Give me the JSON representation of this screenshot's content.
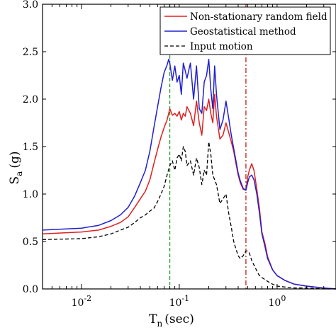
{
  "chart_data": {
    "type": "line",
    "xscale": "log",
    "xlim": [
      0.004,
      4.0
    ],
    "ylim": [
      0,
      3.0
    ],
    "xlabel_main": "T",
    "xlabel_sub": "n",
    "xlabel_unit": "(sec)",
    "ylabel_main": "S",
    "ylabel_sub": "a",
    "ylabel_unit": "(g)",
    "y_ticks": [
      "0.0",
      "0.5",
      "1.0",
      "1.5",
      "2.0",
      "2.5",
      "3.0"
    ],
    "y_tick_values": [
      0,
      0.5,
      1.0,
      1.5,
      2.0,
      2.5,
      3.0
    ],
    "x_major_ticks": [
      {
        "value": 0.01,
        "base": "10",
        "exp": "-2"
      },
      {
        "value": 0.1,
        "base": "10",
        "exp": "-1"
      },
      {
        "value": 1.0,
        "base": "10",
        "exp": "0"
      }
    ],
    "grid": false,
    "legend_position": "top-right",
    "series": [
      {
        "name": "Non-stationary random field",
        "color": "#e02020",
        "style": "solid",
        "x": [
          0.004,
          0.01,
          0.015,
          0.02,
          0.025,
          0.03,
          0.035,
          0.04,
          0.045,
          0.05,
          0.055,
          0.06,
          0.065,
          0.07,
          0.075,
          0.078,
          0.08,
          0.085,
          0.09,
          0.095,
          0.1,
          0.105,
          0.11,
          0.115,
          0.12,
          0.13,
          0.14,
          0.15,
          0.16,
          0.17,
          0.18,
          0.19,
          0.2,
          0.21,
          0.22,
          0.23,
          0.24,
          0.26,
          0.28,
          0.3,
          0.32,
          0.34,
          0.36,
          0.38,
          0.4,
          0.42,
          0.45,
          0.48,
          0.5,
          0.52,
          0.55,
          0.58,
          0.62,
          0.66,
          0.7,
          0.75,
          0.8,
          0.9,
          1.0,
          1.2,
          1.5,
          2.0,
          3.0,
          4.0
        ],
        "y": [
          0.58,
          0.6,
          0.62,
          0.66,
          0.7,
          0.76,
          0.86,
          0.95,
          1.03,
          1.15,
          1.32,
          1.47,
          1.6,
          1.7,
          1.78,
          1.85,
          1.9,
          1.83,
          1.85,
          1.82,
          1.87,
          1.78,
          1.85,
          1.82,
          1.92,
          1.85,
          1.72,
          1.98,
          1.75,
          1.62,
          1.92,
          1.88,
          2.0,
          1.85,
          1.75,
          2.05,
          1.82,
          1.58,
          1.62,
          1.75,
          1.65,
          1.55,
          1.45,
          1.32,
          1.2,
          1.12,
          1.05,
          1.04,
          1.18,
          1.25,
          1.32,
          1.25,
          1.05,
          0.85,
          0.6,
          0.48,
          0.34,
          0.2,
          0.14,
          0.09,
          0.05,
          0.03,
          0.01,
          0.0
        ]
      },
      {
        "name": "Geostatistical method",
        "color": "#2020d0",
        "style": "solid",
        "x": [
          0.004,
          0.01,
          0.015,
          0.02,
          0.025,
          0.03,
          0.035,
          0.04,
          0.045,
          0.05,
          0.055,
          0.06,
          0.065,
          0.07,
          0.075,
          0.078,
          0.08,
          0.085,
          0.09,
          0.095,
          0.1,
          0.105,
          0.11,
          0.115,
          0.12,
          0.13,
          0.14,
          0.15,
          0.16,
          0.17,
          0.18,
          0.19,
          0.2,
          0.21,
          0.22,
          0.23,
          0.24,
          0.26,
          0.28,
          0.3,
          0.32,
          0.34,
          0.36,
          0.38,
          0.4,
          0.42,
          0.45,
          0.48,
          0.5,
          0.52,
          0.55,
          0.58,
          0.62,
          0.66,
          0.7,
          0.75,
          0.8,
          0.9,
          1.0,
          1.2,
          1.5,
          2.0,
          3.0,
          4.0
        ],
        "y": [
          0.62,
          0.64,
          0.67,
          0.72,
          0.78,
          0.86,
          0.98,
          1.12,
          1.25,
          1.45,
          1.7,
          1.92,
          2.12,
          2.28,
          2.36,
          2.42,
          2.38,
          2.2,
          2.35,
          2.18,
          2.25,
          2.05,
          2.38,
          2.3,
          2.22,
          2.38,
          2.0,
          2.35,
          1.9,
          1.85,
          2.18,
          2.25,
          2.42,
          2.1,
          1.9,
          2.35,
          2.05,
          1.68,
          1.78,
          1.98,
          1.8,
          1.62,
          1.48,
          1.35,
          1.22,
          1.14,
          1.06,
          1.04,
          1.12,
          1.18,
          1.2,
          1.15,
          1.0,
          0.8,
          0.58,
          0.45,
          0.32,
          0.2,
          0.14,
          0.09,
          0.05,
          0.03,
          0.01,
          0.0
        ]
      },
      {
        "name": "Input motion",
        "color": "#000000",
        "style": "dashed",
        "x": [
          0.004,
          0.01,
          0.015,
          0.02,
          0.025,
          0.03,
          0.035,
          0.04,
          0.045,
          0.05,
          0.055,
          0.06,
          0.065,
          0.07,
          0.075,
          0.08,
          0.085,
          0.09,
          0.095,
          0.1,
          0.105,
          0.11,
          0.115,
          0.12,
          0.13,
          0.14,
          0.15,
          0.16,
          0.17,
          0.18,
          0.19,
          0.2,
          0.21,
          0.22,
          0.24,
          0.26,
          0.28,
          0.3,
          0.32,
          0.34,
          0.36,
          0.38,
          0.4,
          0.42,
          0.45,
          0.48,
          0.5,
          0.52,
          0.55,
          0.6,
          0.65,
          0.7,
          0.8,
          0.9,
          1.0,
          1.2,
          1.5,
          2.0,
          3.0,
          4.0
        ],
        "y": [
          0.52,
          0.53,
          0.55,
          0.58,
          0.62,
          0.65,
          0.7,
          0.75,
          0.78,
          0.82,
          0.85,
          0.92,
          1.0,
          1.08,
          1.2,
          1.3,
          1.35,
          1.25,
          1.38,
          1.42,
          1.35,
          1.5,
          1.45,
          1.3,
          1.35,
          1.2,
          1.38,
          1.28,
          1.1,
          1.25,
          1.2,
          1.55,
          1.42,
          1.2,
          1.1,
          0.9,
          0.95,
          1.0,
          0.8,
          0.65,
          0.5,
          0.42,
          0.35,
          0.32,
          0.35,
          0.4,
          0.4,
          0.38,
          0.3,
          0.22,
          0.15,
          0.12,
          0.08,
          0.05,
          0.03,
          0.02,
          0.01,
          0.01,
          0.0,
          0.0
        ]
      }
    ],
    "vertical_lines": [
      {
        "x": 0.08,
        "color": "#20a020",
        "style": "dashed"
      },
      {
        "x": 0.48,
        "color": "#c02020",
        "style": "dashdot"
      }
    ]
  }
}
